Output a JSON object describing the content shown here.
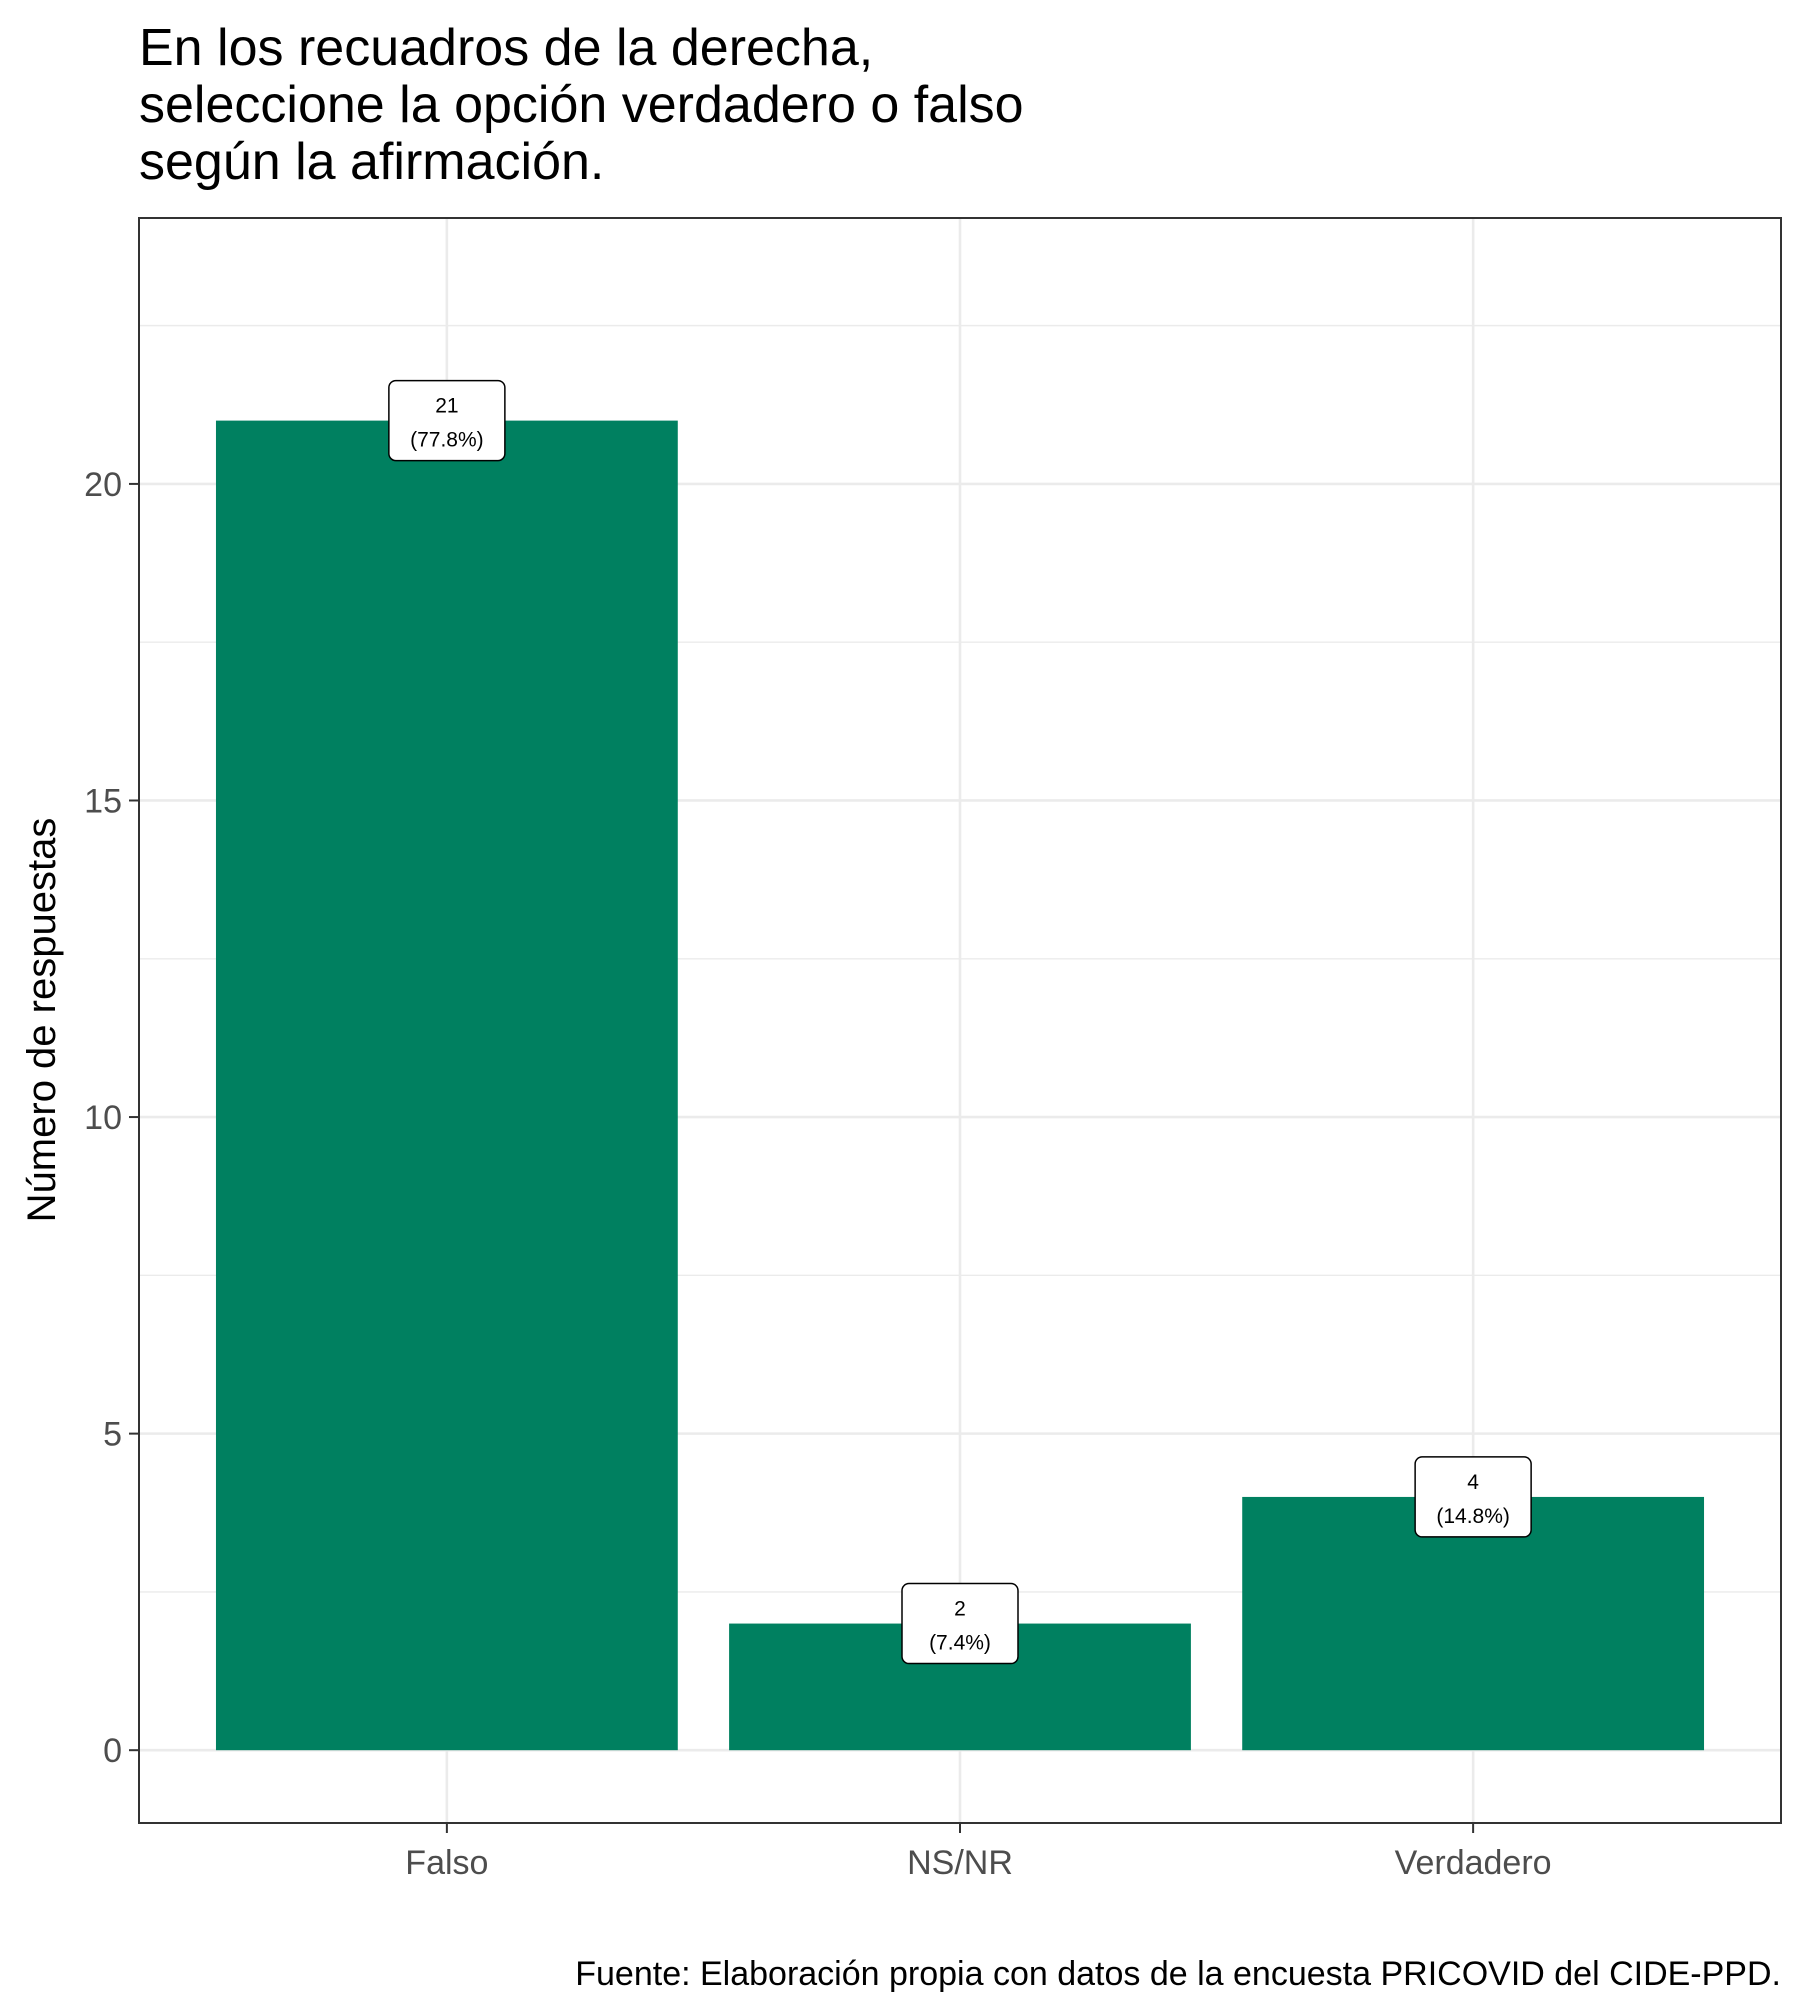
{
  "chart_data": {
    "type": "bar",
    "title_lines": [
      "En los recuadros de la derecha,",
      "seleccione la opción verdadero o falso",
      "según la afirmación."
    ],
    "xlabel": "",
    "ylabel": "Número de respuestas",
    "categories": [
      "Falso",
      "NS/NR",
      "Verdadero"
    ],
    "values": [
      21,
      2,
      4
    ],
    "data_labels": [
      {
        "count": "21",
        "percent": "(77.8%)"
      },
      {
        "count": "2",
        "percent": "(7.4%)"
      },
      {
        "count": "4",
        "percent": "(14.8%)"
      }
    ],
    "yticks": [
      0,
      5,
      10,
      15,
      20
    ],
    "ylim": [
      -1.15,
      24.2
    ],
    "grid": true,
    "bar_color": "#008060",
    "caption": "Fuente: Elaboración propia con datos de la encuesta PRICOVID del CIDE-PPD."
  }
}
